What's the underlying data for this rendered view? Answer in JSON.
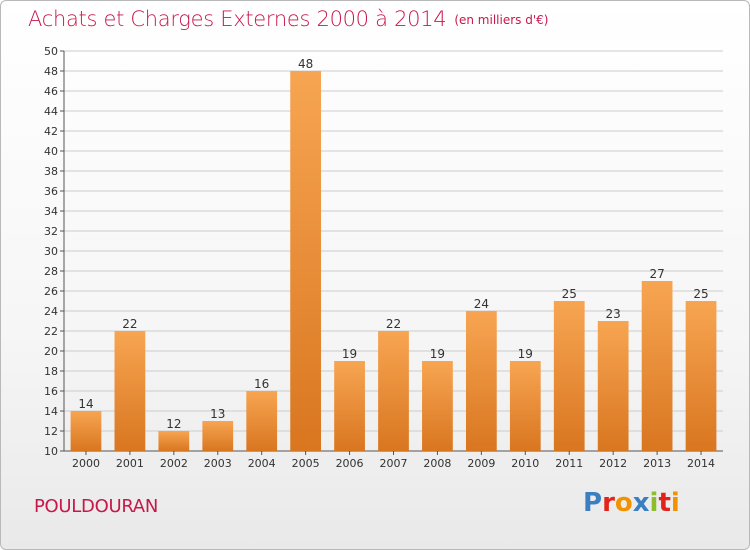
{
  "header": {
    "title": "Achats et Charges Externes 2000 à 2014",
    "subtitle": "(en milliers d'€)"
  },
  "footer": {
    "commune": "POULDOURAN",
    "logo_text": "Proxiti",
    "logo_colors": [
      "#3a7fc1",
      "#e2231a",
      "#f39200",
      "#3a7fc1",
      "#8cbd2a",
      "#e2231a",
      "#f39200"
    ]
  },
  "colors": {
    "bar_top": "#f7a552",
    "bar_bottom": "#d97620",
    "title": "#c8184a",
    "grid": "#cccccc"
  },
  "chart_data": {
    "type": "bar",
    "categories": [
      "2000",
      "2001",
      "2002",
      "2003",
      "2004",
      "2005",
      "2006",
      "2007",
      "2008",
      "2009",
      "2010",
      "2011",
      "2012",
      "2013",
      "2014"
    ],
    "values": [
      14,
      22,
      12,
      13,
      16,
      48,
      19,
      22,
      19,
      24,
      19,
      25,
      23,
      27,
      25
    ],
    "ylim": [
      10,
      50
    ],
    "ytick_step": 2,
    "grid": true,
    "data_labels": true
  }
}
